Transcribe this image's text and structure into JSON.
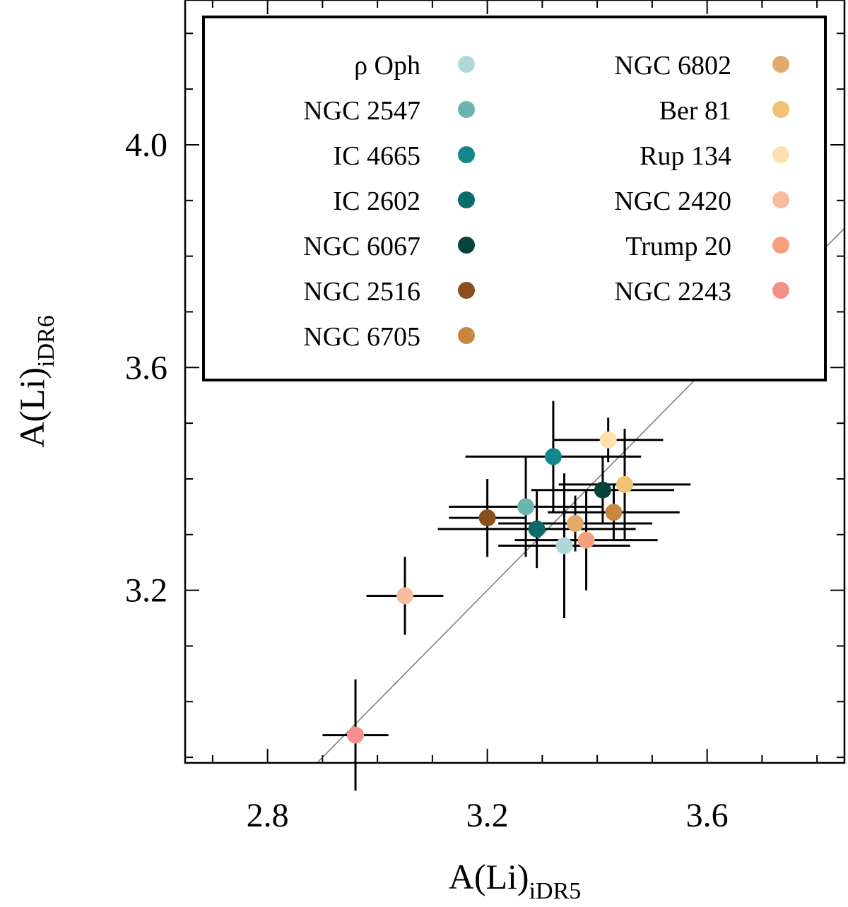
{
  "chart_data": {
    "type": "scatter",
    "xlabel": {
      "main": "A(Li)",
      "sub": "iDR5"
    },
    "ylabel": {
      "main": "A(Li)",
      "sub": "iDR6"
    },
    "xlim": [
      2.65,
      3.85
    ],
    "ylim": [
      2.89,
      4.26
    ],
    "xticks": [
      {
        "value": 2.8,
        "label": "2.8"
      },
      {
        "value": 3.2,
        "label": "3.2"
      },
      {
        "value": 3.6,
        "label": "3.6"
      }
    ],
    "yticks": [
      {
        "value": 3.2,
        "label": "3.2"
      },
      {
        "value": 3.6,
        "label": "3.6"
      },
      {
        "value": 4.0,
        "label": "4.0"
      }
    ],
    "minor_step": 0.1,
    "one_to_one_line": true,
    "legend_location": "top-right",
    "series": [
      {
        "name": "ρ Oph",
        "color": "#b0d8d8",
        "x": 3.34,
        "y": 3.28,
        "xerr": 0.12,
        "yerr": 0.13
      },
      {
        "name": "NGC 2547",
        "color": "#6cb4b0",
        "x": 3.27,
        "y": 3.35,
        "xerr": 0.14,
        "yerr": 0.09
      },
      {
        "name": "IC 4665",
        "color": "#12878a",
        "x": 3.32,
        "y": 3.44,
        "xerr": 0.16,
        "yerr": 0.1
      },
      {
        "name": "IC 2602",
        "color": "#0b6b68",
        "x": 3.29,
        "y": 3.31,
        "xerr": 0.18,
        "yerr": 0.07
      },
      {
        "name": "NGC 6067",
        "color": "#07433d",
        "x": 3.41,
        "y": 3.38,
        "xerr": 0.13,
        "yerr": 0.06
      },
      {
        "name": "NGC 2516",
        "color": "#8a4f1f",
        "x": 3.2,
        "y": 3.33,
        "xerr": 0.07,
        "yerr": 0.07
      },
      {
        "name": "NGC 6705",
        "color": "#c8873f",
        "x": 3.43,
        "y": 3.34,
        "xerr": 0.12,
        "yerr": 0.05
      },
      {
        "name": "NGC 6802",
        "color": "#e0aa6a",
        "x": 3.36,
        "y": 3.32,
        "xerr": 0.14,
        "yerr": 0.05
      },
      {
        "name": "Ber 81",
        "color": "#f2c171",
        "x": 3.45,
        "y": 3.39,
        "xerr": 0.12,
        "yerr": 0.1
      },
      {
        "name": "Rup 134",
        "color": "#fde0ad",
        "x": 3.42,
        "y": 3.47,
        "xerr": 0.1,
        "yerr": 0.04
      },
      {
        "name": "NGC 2420",
        "color": "#f7bba0",
        "x": 3.05,
        "y": 3.19,
        "xerr": 0.07,
        "yerr": 0.07
      },
      {
        "name": "Trump 20",
        "color": "#f4a07a",
        "x": 3.38,
        "y": 3.29,
        "xerr": 0.13,
        "yerr": 0.09
      },
      {
        "name": "NGC 2243",
        "color": "#f4908a",
        "x": 2.96,
        "y": 2.94,
        "xerr": 0.06,
        "yerr": 0.1
      }
    ]
  }
}
